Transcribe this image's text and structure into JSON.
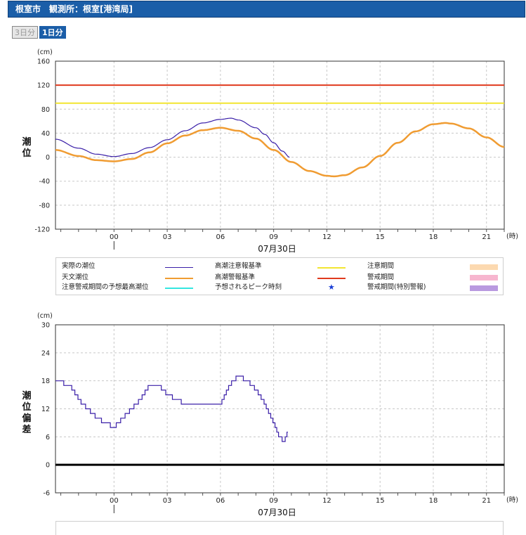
{
  "header": {
    "title": "根室市　観測所：根室[港湾局]"
  },
  "tabs": [
    {
      "label": "3日分",
      "active": false
    },
    {
      "label": "1日分",
      "active": true
    }
  ],
  "chart_data": [
    {
      "type": "line",
      "ylabel": "潮位",
      "yunit": "(cm)",
      "xunit": "(時)",
      "date_label": "07月30日",
      "ylim": [
        -120,
        160
      ],
      "yticks": [
        160,
        120,
        80,
        40,
        0,
        -40,
        -80,
        -120
      ],
      "xlim": [
        -3.3,
        22
      ],
      "xticks": [
        "00",
        "03",
        "06",
        "09",
        "12",
        "15",
        "18",
        "21"
      ],
      "grid": true,
      "series": [
        {
          "name": "実際の潮位",
          "color": "#3a1fa8",
          "x": [
            -3.3,
            -2,
            -1,
            0,
            1,
            2,
            3,
            4,
            5,
            6,
            6.6,
            7,
            8,
            8.5,
            9,
            9.5,
            9.9
          ],
          "values": [
            30,
            15,
            5,
            1,
            6,
            16,
            29,
            44,
            57,
            63,
            65,
            62,
            49,
            38,
            24,
            10,
            0
          ]
        },
        {
          "name": "天文潮位",
          "color": "#f09c32",
          "x": [
            -3.3,
            -2,
            -1,
            0,
            1,
            2,
            3,
            4,
            5,
            6,
            7,
            8,
            9,
            10,
            11,
            12,
            12.4,
            13,
            14,
            15,
            16,
            17,
            18,
            18.7,
            19,
            20,
            21,
            22
          ],
          "values": [
            12,
            2,
            -5,
            -7,
            -3,
            8,
            23,
            36,
            45,
            49,
            44,
            31,
            12,
            -8,
            -23,
            -31,
            -32,
            -30,
            -17,
            2,
            24,
            43,
            55,
            57,
            56,
            48,
            33,
            17
          ]
        },
        {
          "name": "高潮注意報基準",
          "color": "#f2e531",
          "constant": 90
        },
        {
          "name": "高潮警報基準",
          "color": "#e03a1e",
          "constant": 120
        }
      ],
      "legend": [
        {
          "label": "実際の潮位",
          "kind": "line",
          "color": "#3a1fa8"
        },
        {
          "label": "天文潮位",
          "kind": "line",
          "color": "#f09c32"
        },
        {
          "label": "注意警戒期間の予想最高潮位",
          "kind": "line",
          "color": "#34e6e0"
        },
        {
          "label": "高潮注意報基準",
          "kind": "line",
          "color": "#f2e531"
        },
        {
          "label": "高潮警報基準",
          "kind": "line",
          "color": "#e03a1e"
        },
        {
          "label": "予想されるピーク時刻",
          "kind": "star",
          "color": "#1a3fd6",
          "symbol": "★"
        },
        {
          "label": "注意期間",
          "kind": "box",
          "color": "#fcd9b0"
        },
        {
          "label": "警戒期間",
          "kind": "box",
          "color": "#f7b6cf"
        },
        {
          "label": "警戒期間(特別警報)",
          "kind": "box",
          "color": "#b99ae0"
        }
      ]
    },
    {
      "type": "line",
      "ylabel": "潮位偏差",
      "yunit": "(cm)",
      "xunit": "(時)",
      "date_label": "07月30日",
      "ylim": [
        -6,
        30
      ],
      "yticks": [
        30,
        24,
        18,
        12,
        6,
        0,
        -6
      ],
      "xlim": [
        -3.3,
        22
      ],
      "xticks": [
        "00",
        "03",
        "06",
        "09",
        "12",
        "15",
        "18",
        "21"
      ],
      "grid": true,
      "series": [
        {
          "name": "潮位偏差",
          "color": "#3a1fa8",
          "x": [
            -3.3,
            -2.5,
            -1.8,
            -1,
            -0.5,
            0,
            0.5,
            1,
            1.5,
            2,
            2.5,
            3,
            3.5,
            4,
            4.5,
            5,
            5.5,
            6,
            6.5,
            7,
            7.5,
            8,
            8.5,
            9,
            9.3,
            9.6,
            9.8
          ],
          "values": [
            18,
            17,
            13,
            10,
            9,
            8,
            10,
            12,
            14,
            17,
            17,
            15,
            14,
            13,
            13,
            13,
            13,
            13,
            17,
            19,
            18,
            16,
            13,
            9,
            6,
            5,
            7
          ]
        }
      ],
      "zero_line": 0
    }
  ]
}
